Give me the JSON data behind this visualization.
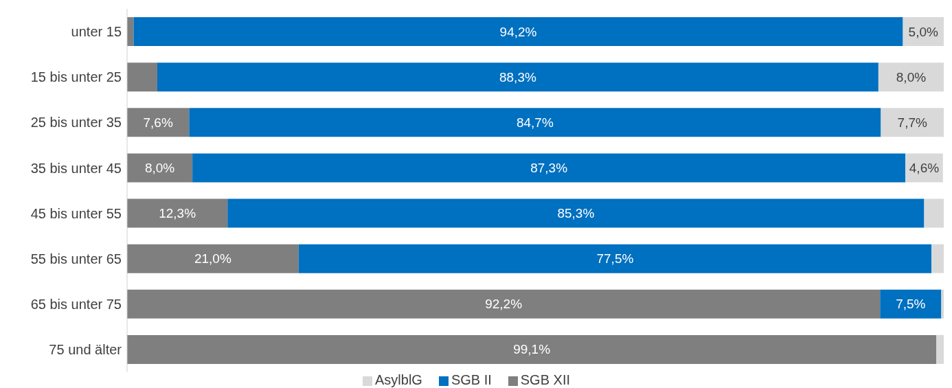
{
  "chart_data": {
    "type": "bar",
    "orientation": "horizontal",
    "stacked": true,
    "categories": [
      "unter 15",
      "15 bis unter 25",
      "25 bis unter 35",
      "35 bis unter 45",
      "45 bis unter 55",
      "55 bis unter 65",
      "65 bis unter 75",
      "75 und älter"
    ],
    "series": [
      {
        "name": "SGB XII",
        "color": "#7f7f7f",
        "values": [
          0.8,
          3.7,
          7.6,
          8.0,
          12.3,
          21.0,
          92.2,
          99.1
        ],
        "value_labels": [
          null,
          null,
          "7,6%",
          "8,0%",
          "12,3%",
          "21,0%",
          "92,2%",
          "99,1%"
        ]
      },
      {
        "name": "SGB II",
        "color": "#0070c0",
        "values": [
          94.2,
          88.3,
          84.7,
          87.3,
          85.3,
          77.5,
          7.5,
          0.0
        ],
        "value_labels": [
          "94,2%",
          "88,3%",
          "84,7%",
          "87,3%",
          "85,3%",
          "77,5%",
          "7,5%",
          null
        ]
      },
      {
        "name": "AsylblG",
        "color": "#d9d9d9",
        "values": [
          5.0,
          8.0,
          7.7,
          4.6,
          2.4,
          1.5,
          0.3,
          0.9
        ],
        "value_labels": [
          "5,0%",
          "8,0%",
          "7,7%",
          "4,6%",
          null,
          null,
          null,
          null
        ]
      }
    ],
    "xlim": [
      0,
      100
    ],
    "tick_labels": "y",
    "grid": false,
    "legend": "bottom"
  }
}
